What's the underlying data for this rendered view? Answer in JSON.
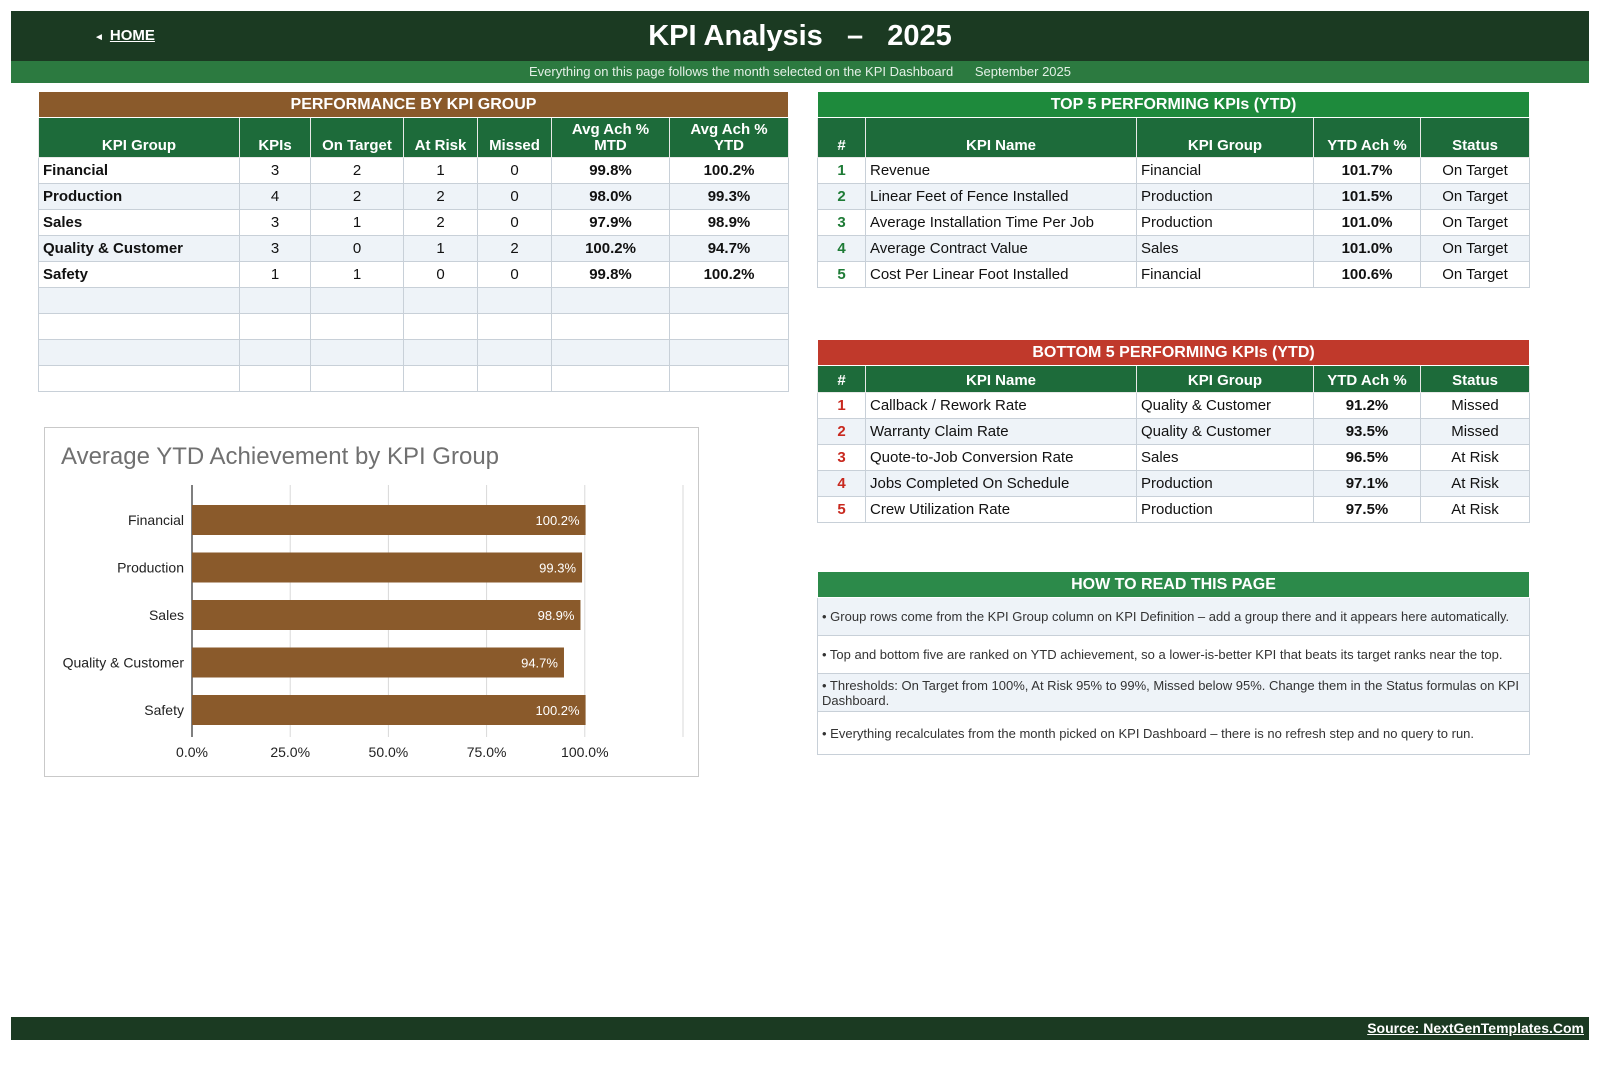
{
  "header": {
    "home_label": "HOME",
    "title": "KPI Analysis   –   2025",
    "subtitle": "Everything on this page follows the month selected on the KPI Dashboard      September 2025"
  },
  "colors": {
    "dark_green": "#1b3a22",
    "green": "#1d6b3a",
    "brown": "#8a5a2b",
    "red": "#c0392b",
    "bright_green": "#1e8a3c"
  },
  "group_table": {
    "title": "PERFORMANCE BY KPI GROUP",
    "columns": [
      "KPI Group",
      "KPIs",
      "On Target",
      "At Risk",
      "Missed",
      "Avg Ach % MTD",
      "Avg Ach % YTD"
    ],
    "rows": [
      [
        "Financial",
        "3",
        "2",
        "1",
        "0",
        "99.8%",
        "100.2%"
      ],
      [
        "Production",
        "4",
        "2",
        "2",
        "0",
        "98.0%",
        "99.3%"
      ],
      [
        "Sales",
        "3",
        "1",
        "2",
        "0",
        "97.9%",
        "98.9%"
      ],
      [
        "Quality & Customer",
        "3",
        "0",
        "1",
        "2",
        "100.2%",
        "94.7%"
      ],
      [
        "Safety",
        "1",
        "1",
        "0",
        "0",
        "99.8%",
        "100.2%"
      ]
    ]
  },
  "top5": {
    "title": "TOP 5 PERFORMING KPIs  (YTD)",
    "columns": [
      "#",
      "KPI Name",
      "KPI Group",
      "YTD Ach %",
      "Status"
    ],
    "rows": [
      [
        "1",
        "Revenue",
        "Financial",
        "101.7%",
        "On Target"
      ],
      [
        "2",
        "Linear Feet of Fence Installed",
        "Production",
        "101.5%",
        "On Target"
      ],
      [
        "3",
        "Average Installation Time Per Job",
        "Production",
        "101.0%",
        "On Target"
      ],
      [
        "4",
        "Average Contract Value",
        "Sales",
        "101.0%",
        "On Target"
      ],
      [
        "5",
        "Cost Per Linear Foot Installed",
        "Financial",
        "100.6%",
        "On Target"
      ]
    ]
  },
  "bottom5": {
    "title": "BOTTOM 5 PERFORMING KPIs  (YTD)",
    "columns": [
      "#",
      "KPI Name",
      "KPI Group",
      "YTD Ach %",
      "Status"
    ],
    "rows": [
      [
        "1",
        "Callback / Rework Rate",
        "Quality & Customer",
        "91.2%",
        "Missed"
      ],
      [
        "2",
        "Warranty Claim Rate",
        "Quality & Customer",
        "93.5%",
        "Missed"
      ],
      [
        "3",
        "Quote-to-Job Conversion Rate",
        "Sales",
        "96.5%",
        "At Risk"
      ],
      [
        "4",
        "Jobs Completed On Schedule",
        "Production",
        "97.1%",
        "At Risk"
      ],
      [
        "5",
        "Crew Utilization Rate",
        "Production",
        "97.5%",
        "At Risk"
      ]
    ]
  },
  "how_to": {
    "title": "HOW TO READ THIS PAGE",
    "notes": [
      "•  Group rows come from the KPI Group column on KPI Definition – add a group there and it appears here automatically.",
      "•  Top and bottom five are ranked on YTD achievement, so a lower-is-better KPI that beats its target ranks near the top.",
      "•  Thresholds: On Target from 100%, At Risk 95% to 99%, Missed below 95%. Change them in the Status formulas on KPI Dashboard.",
      "•  Everything recalculates from the month picked on KPI Dashboard – there is no refresh step and no query to run."
    ]
  },
  "chart_data": {
    "type": "bar",
    "orientation": "horizontal",
    "title": "Average YTD Achievement by KPI Group",
    "categories": [
      "Financial",
      "Production",
      "Sales",
      "Quality & Customer",
      "Safety"
    ],
    "values": [
      100.2,
      99.3,
      98.9,
      94.7,
      100.2
    ],
    "value_labels": [
      "100.2%",
      "99.3%",
      "98.9%",
      "94.7%",
      "100.2%"
    ],
    "xlim": [
      0,
      125
    ],
    "x_ticks": [
      "0.0%",
      "25.0%",
      "50.0%",
      "75.0%",
      "100.0%"
    ],
    "grid": true,
    "bar_color": "#8a5a2b"
  },
  "footer": {
    "source": "Source: NextGenTemplates.Com"
  }
}
